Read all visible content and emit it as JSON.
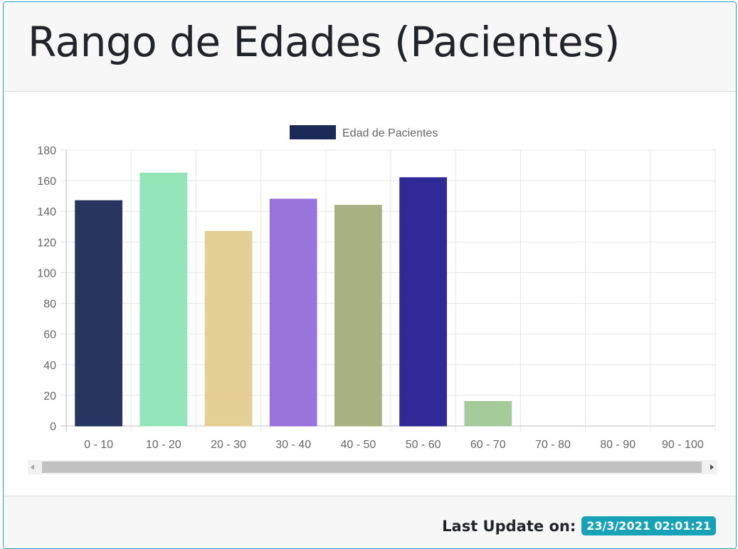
{
  "header": {
    "title": "Rango de Edades (Pacientes)"
  },
  "footer": {
    "label": "Last Update on:",
    "timestamp": "23/3/2021 02:01:21"
  },
  "chart_data": {
    "type": "bar",
    "title": "",
    "xlabel": "",
    "ylabel": "",
    "ylim": [
      0,
      180
    ],
    "yticks": [
      0,
      20,
      40,
      60,
      80,
      100,
      120,
      140,
      160,
      180
    ],
    "grid": true,
    "legend_position": "top",
    "categories": [
      "0 - 10",
      "10 - 20",
      "20 - 30",
      "30 - 40",
      "40 - 50",
      "50 - 60",
      "60 - 70",
      "70 - 80",
      "80 - 90",
      "90 - 100"
    ],
    "series": [
      {
        "name": "Edad de Pacientes",
        "legend_color": "#1c2a57",
        "values": [
          147,
          165,
          127,
          148,
          144,
          162,
          16,
          0,
          0,
          0
        ],
        "colors": [
          "#1c2a57",
          "#8ee3b5",
          "#e3cc8e",
          "#956ddb",
          "#a3ad7a",
          "#251f94",
          "#a0c895",
          "#cccccc",
          "#cccccc",
          "#cccccc"
        ]
      }
    ]
  }
}
